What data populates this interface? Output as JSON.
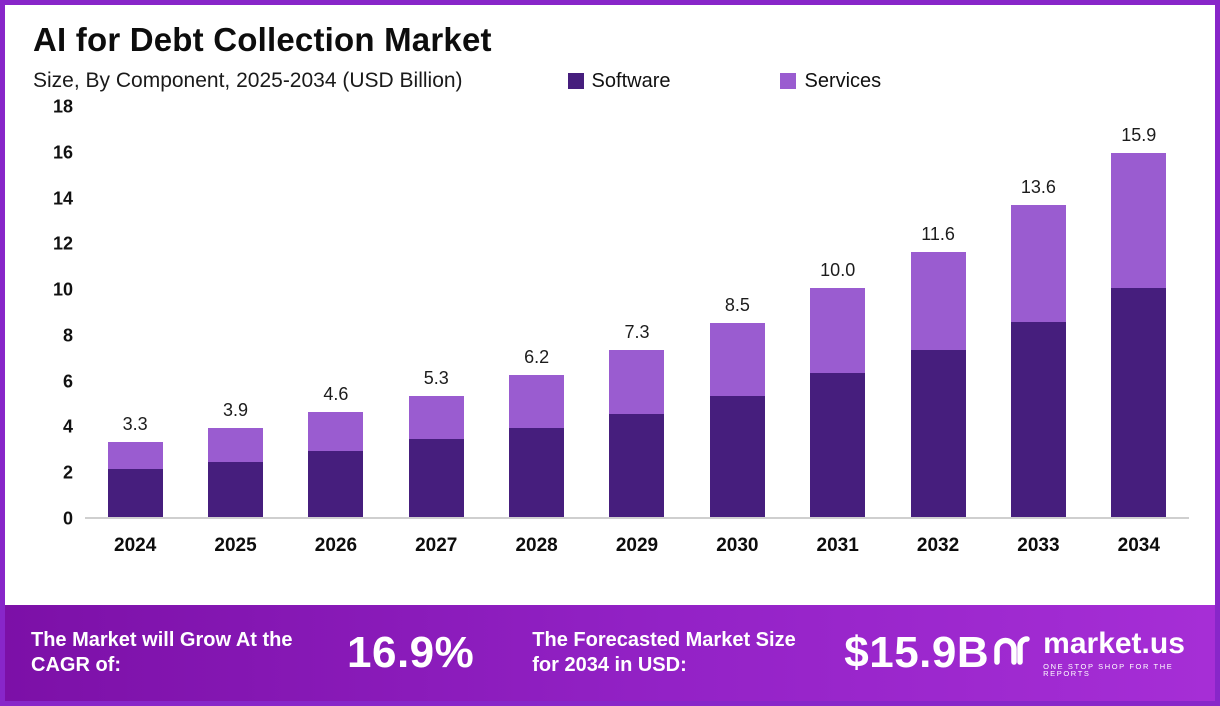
{
  "title": "AI for Debt Collection Market",
  "subtitle": "Size, By Component, 2025-2034 (USD Billion)",
  "chart_data": {
    "type": "bar",
    "stacked": true,
    "title": "AI for Debt Collection Market",
    "subtitle": "Size, By Component, 2025-2034 (USD Billion)",
    "unit": "USD Billion",
    "categories": [
      "2024",
      "2025",
      "2026",
      "2027",
      "2028",
      "2029",
      "2030",
      "2031",
      "2032",
      "2033",
      "2034"
    ],
    "series": [
      {
        "name": "Software",
        "color": "#461e7d",
        "values": [
          2.1,
          2.4,
          2.9,
          3.4,
          3.9,
          4.5,
          5.3,
          6.3,
          7.3,
          8.5,
          10.0
        ]
      },
      {
        "name": "Services",
        "color": "#9a5cd0",
        "values": [
          1.2,
          1.5,
          1.7,
          1.9,
          2.3,
          2.8,
          3.2,
          3.7,
          4.3,
          5.1,
          5.9
        ]
      }
    ],
    "totals": [
      3.3,
      3.9,
      4.6,
      5.3,
      6.2,
      7.3,
      8.5,
      10.0,
      11.6,
      13.6,
      15.9
    ],
    "total_labels": [
      "3.3",
      "3.9",
      "4.6",
      "5.3",
      "6.2",
      "7.3",
      "8.5",
      "10.0",
      "11.6",
      "13.6",
      "15.9"
    ],
    "ylim": [
      0,
      18
    ],
    "yticks": [
      0,
      2,
      4,
      6,
      8,
      10,
      12,
      14,
      16,
      18
    ],
    "grid": false,
    "legend_position": "top-right"
  },
  "footer": {
    "cagr_label": "The Market will Grow At the CAGR of:",
    "cagr_value": "16.9%",
    "forecast_label": "The Forecasted Market Size for 2034 in USD:",
    "forecast_value": "$15.9B",
    "brand_name": "market.us",
    "brand_tagline": "ONE STOP SHOP FOR THE REPORTS"
  },
  "colors": {
    "software": "#461e7d",
    "services": "#9a5cd0",
    "border": "#8826c9",
    "banner_start": "#7c10a7",
    "banner_end": "#a62ed6"
  }
}
